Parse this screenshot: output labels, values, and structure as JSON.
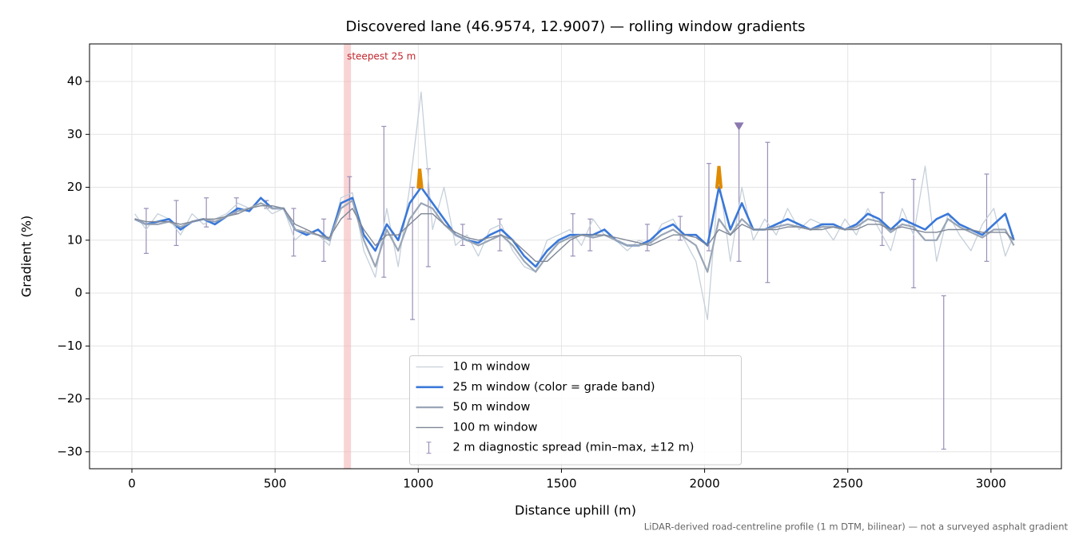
{
  "chart_data": {
    "type": "line",
    "title": "Discovered lane (46.9574, 12.9007) — rolling window gradients",
    "xlabel": "Distance uphill (m)",
    "ylabel": "Gradient (%)",
    "footnote": "LiDAR-derived road-centreline profile (1 m DTM, bilinear) — not a surveyed asphalt gradient",
    "xlim": [
      -148,
      3246
    ],
    "ylim": [
      -33.2,
      47.1
    ],
    "xticks": [
      0,
      500,
      1000,
      1500,
      2000,
      2500,
      3000
    ],
    "yticks": [
      {
        "value": -30,
        "label": "−30"
      },
      {
        "value": -20,
        "label": "−20"
      },
      {
        "value": -10,
        "label": "−10"
      },
      0,
      10,
      20,
      30,
      40
    ],
    "grid": true,
    "legend": "lower center",
    "x": [
      10,
      50,
      90,
      130,
      170,
      210,
      250,
      290,
      330,
      370,
      410,
      450,
      490,
      530,
      570,
      610,
      650,
      690,
      730,
      770,
      810,
      850,
      890,
      930,
      970,
      1010,
      1050,
      1090,
      1130,
      1170,
      1210,
      1250,
      1290,
      1330,
      1370,
      1410,
      1450,
      1490,
      1530,
      1570,
      1610,
      1650,
      1690,
      1730,
      1770,
      1810,
      1850,
      1890,
      1930,
      1970,
      2010,
      2050,
      2090,
      2130,
      2170,
      2210,
      2250,
      2290,
      2330,
      2370,
      2410,
      2450,
      2490,
      2530,
      2570,
      2610,
      2650,
      2690,
      2730,
      2770,
      2810,
      2850,
      2890,
      2930,
      2970,
      3010,
      3050,
      3080
    ],
    "series": [
      {
        "name": "10 m window",
        "color": "#c5d0da",
        "width": 1.3,
        "values": [
          15,
          12,
          15,
          14,
          11,
          15,
          13,
          14,
          15,
          17,
          16,
          17,
          15,
          16,
          10,
          12,
          11,
          9,
          18,
          19,
          8,
          3,
          16,
          5,
          20,
          38,
          12,
          20,
          9,
          11,
          7,
          12,
          13,
          8,
          5,
          4,
          10,
          11,
          12,
          9,
          14,
          11,
          10,
          8,
          10,
          9,
          13,
          14,
          10,
          6,
          -5,
          22,
          6,
          20,
          10,
          14,
          11,
          16,
          12,
          14,
          13,
          10,
          14,
          11,
          16,
          12,
          8,
          16,
          11,
          24,
          6,
          15,
          11,
          8,
          13,
          16,
          7,
          11
        ]
      },
      {
        "name": "25 m window (color = grade band)",
        "color": "#3a78d8",
        "width": 2.6,
        "values": [
          14,
          13,
          13.5,
          14,
          12,
          13.5,
          14,
          13,
          14.5,
          16,
          15.5,
          18,
          16,
          16,
          12,
          11,
          12,
          10,
          17,
          18,
          11,
          8,
          13,
          10,
          17,
          20,
          17,
          14,
          11,
          10,
          9.5,
          11,
          12,
          10,
          7,
          5,
          8,
          10,
          11,
          11,
          11,
          12,
          10,
          9,
          9,
          10,
          12,
          13,
          11,
          11,
          9,
          20,
          12,
          17,
          12,
          12,
          13,
          14,
          13,
          12,
          13,
          13,
          12,
          13,
          15,
          14,
          12,
          14,
          13,
          12,
          14,
          15,
          13,
          12,
          11,
          13,
          15,
          10
        ]
      },
      {
        "name": "50 m window",
        "color": "#9aa6b6",
        "width": 2.2,
        "values": [
          14,
          13,
          13,
          13.5,
          12.5,
          13.5,
          14,
          13.5,
          14.5,
          15.5,
          16,
          17,
          16,
          16,
          12,
          11.5,
          11,
          10,
          16,
          17.5,
          10,
          5,
          12,
          8,
          14,
          17,
          16,
          13,
          11,
          10,
          9,
          10,
          11,
          9,
          6,
          4,
          7,
          9.5,
          10.5,
          11,
          10.5,
          11,
          10,
          9,
          9,
          9.5,
          11,
          12,
          10.5,
          9,
          4,
          14,
          11,
          14,
          12,
          12,
          12.5,
          13,
          12.5,
          12,
          12.5,
          12.5,
          12,
          12.5,
          14,
          13.5,
          11.5,
          13,
          12.5,
          10,
          10,
          14,
          12.5,
          11.5,
          10.5,
          12,
          12,
          9
        ]
      },
      {
        "name": "100 m window",
        "color": "#7f8796",
        "width": 1.4,
        "values": [
          14,
          13.5,
          13.5,
          13.5,
          13,
          13.5,
          14,
          14,
          14.5,
          15,
          16,
          16.5,
          16.5,
          16,
          13,
          12,
          11,
          10.5,
          14,
          16,
          12,
          9,
          11,
          11,
          13,
          15,
          15,
          13,
          11.5,
          10.5,
          10,
          10.5,
          11,
          10,
          8,
          6,
          6,
          8,
          10,
          11,
          11,
          11,
          10.5,
          10,
          9.5,
          9,
          10,
          11,
          11,
          10.5,
          9,
          12,
          11,
          13,
          12,
          12,
          12,
          12.5,
          12.5,
          12,
          12,
          12.5,
          12,
          12,
          13,
          13,
          12,
          12.5,
          12,
          11.5,
          11.5,
          12,
          12,
          12,
          11.5,
          11.5,
          11.5,
          10
        ]
      }
    ],
    "grade_band_highlights": [
      {
        "color": "#e08a00",
        "x": [
          1000,
          1005,
          1012
        ],
        "values": [
          20,
          23.5,
          20
        ]
      },
      {
        "color": "#e08a00",
        "x": [
          2043,
          2050,
          2057
        ],
        "values": [
          20,
          24,
          20
        ]
      }
    ],
    "errorbars": {
      "name": "2 m diagnostic spread (min–max, ±12 m)",
      "color": "#9990b8",
      "x": [
        50,
        155,
        260,
        365,
        470,
        565,
        670,
        760,
        880,
        980,
        1035,
        1155,
        1285,
        1540,
        1600,
        1800,
        1915,
        2015,
        2120,
        2220,
        2620,
        2730,
        2835,
        2985
      ],
      "lows": [
        7.5,
        9,
        12.5,
        15,
        16,
        7,
        6,
        14,
        3,
        -5,
        5,
        9,
        8,
        7,
        8,
        8,
        10,
        8,
        6,
        2,
        9,
        1,
        -29.5,
        6
      ],
      "highs": [
        16,
        17.5,
        18,
        18,
        17.5,
        16,
        14,
        22,
        31.5,
        20,
        23.5,
        13,
        14,
        15,
        14,
        13,
        14.5,
        24.5,
        31.5,
        28.5,
        19,
        21.5,
        -0.5,
        22.5
      ]
    },
    "steepest_band": {
      "label": "steepest 25 m",
      "x": [
        740,
        765
      ],
      "color": "#f4b8b8"
    },
    "marker": {
      "x": 2120,
      "y": 31.5,
      "color": "#8c78b0"
    }
  }
}
